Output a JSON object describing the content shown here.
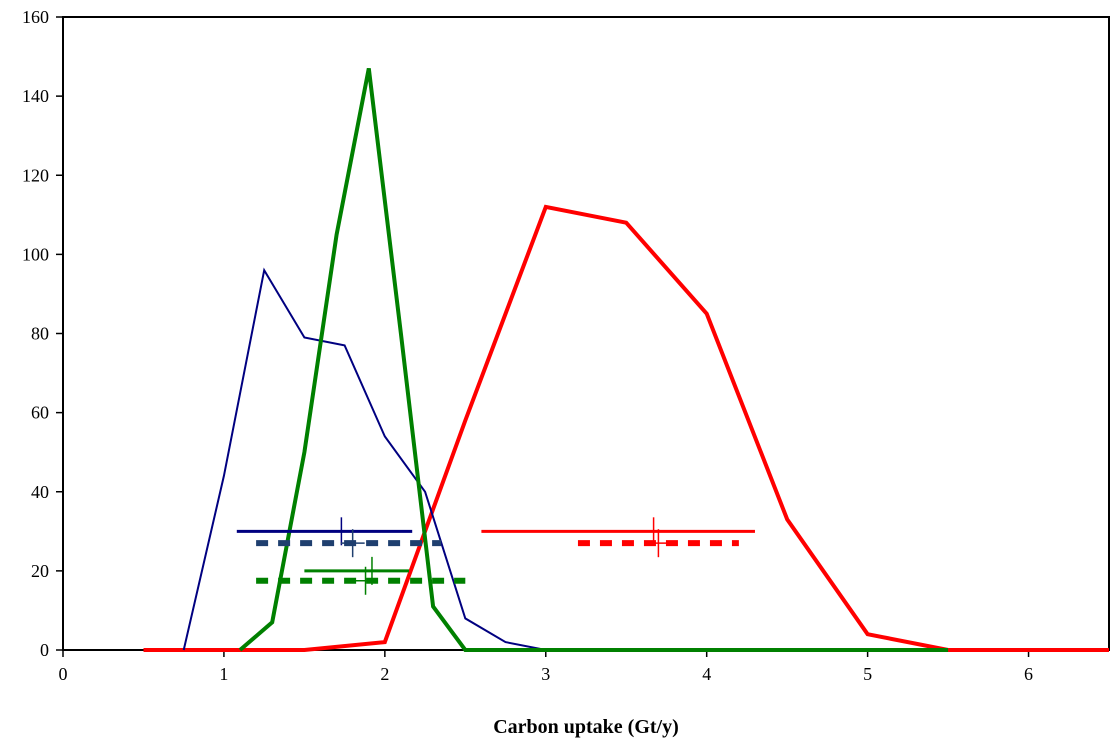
{
  "chart_data": {
    "type": "line",
    "title": "",
    "xlabel": "Carbon uptake (Gt/y)",
    "ylabel": "",
    "xlim": [
      0,
      6.5
    ],
    "ylim": [
      0,
      160
    ],
    "xticks": [
      0,
      1,
      2,
      3,
      4,
      5,
      6
    ],
    "yticks": [
      0,
      20,
      40,
      60,
      80,
      100,
      120,
      140,
      160
    ],
    "grid": false,
    "legend": "none",
    "series": [
      {
        "color": "#000080",
        "x": [
          0.75,
          1.0,
          1.25,
          1.5,
          1.75,
          2.0,
          2.25,
          2.5,
          2.75,
          3.0,
          3.25,
          3.5,
          4.0
        ],
        "y": [
          0,
          44,
          96,
          79,
          77,
          54,
          40,
          8,
          2,
          0,
          0,
          0,
          0
        ]
      },
      {
        "color": "#008000",
        "x": [
          1.1,
          1.3,
          1.5,
          1.7,
          1.9,
          2.1,
          2.3,
          2.5,
          3.0,
          4.0,
          5.0,
          5.5
        ],
        "y": [
          0,
          7,
          50,
          105,
          147,
          80,
          11,
          0,
          0,
          0,
          0,
          0
        ]
      },
      {
        "color": "#ff0000",
        "x": [
          0.5,
          1.5,
          2.0,
          2.5,
          3.0,
          3.5,
          4.0,
          4.5,
          5.0,
          5.5,
          6.0,
          6.5
        ],
        "y": [
          0,
          0,
          2,
          58,
          112,
          108,
          85,
          33,
          4,
          0,
          0,
          0
        ]
      }
    ],
    "ranges": [
      {
        "color": "#000080",
        "style": "solid",
        "x": [
          1.08,
          2.17
        ],
        "y": 30,
        "mark_x": 1.73
      },
      {
        "color": "#1f3f6f",
        "style": "dashed",
        "x": [
          1.2,
          2.35
        ],
        "y": 27,
        "mark_x": 1.8
      },
      {
        "color": "#008000",
        "style": "solid",
        "x": [
          1.5,
          2.15
        ],
        "y": 20,
        "mark_x": 1.92
      },
      {
        "color": "#008000",
        "style": "dashed",
        "x": [
          1.2,
          2.5
        ],
        "y": 17.5,
        "mark_x": 1.88
      },
      {
        "color": "#ff0000",
        "style": "solid",
        "x": [
          2.6,
          4.3
        ],
        "y": 30,
        "mark_x": 3.67
      },
      {
        "color": "#ff0000",
        "style": "dashed",
        "x": [
          3.2,
          4.2
        ],
        "y": 27,
        "mark_x": 3.7
      }
    ]
  }
}
